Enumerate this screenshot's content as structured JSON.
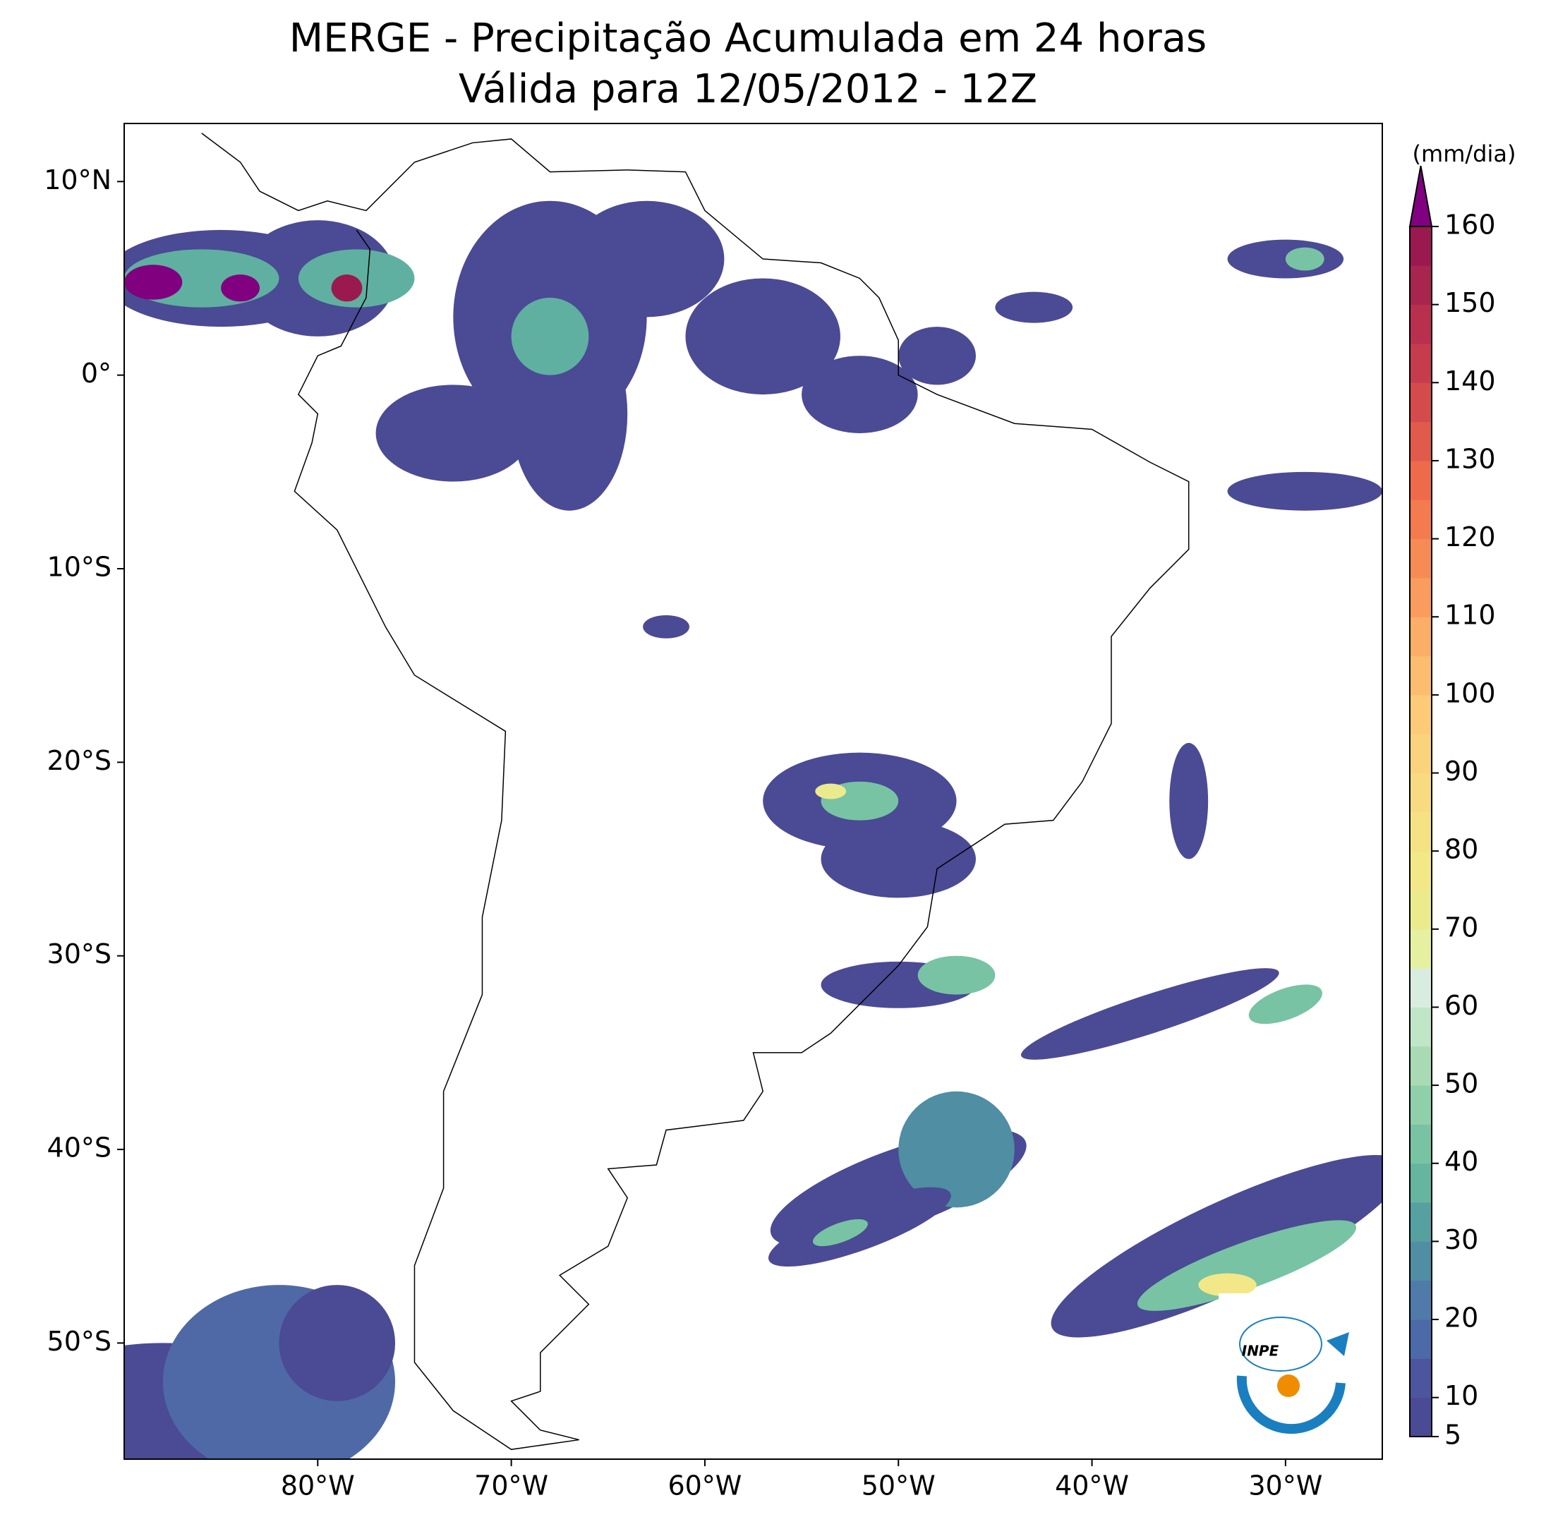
{
  "title": [
    "MERGE - Precipitação Acumulada em 24 horas",
    "Válida para 12/05/2012 - 12Z"
  ],
  "map": {
    "type": "map",
    "xlim": [
      -90,
      -25
    ],
    "ylim": [
      -56,
      13
    ],
    "xticks": [
      {
        "value": -80,
        "label": "80°W"
      },
      {
        "value": -70,
        "label": "70°W"
      },
      {
        "value": -60,
        "label": "60°W"
      },
      {
        "value": -50,
        "label": "50°W"
      },
      {
        "value": -40,
        "label": "40°W"
      },
      {
        "value": -30,
        "label": "30°W"
      }
    ],
    "yticks": [
      {
        "value": 10,
        "label": "10°N"
      },
      {
        "value": 0,
        "label": "0°"
      },
      {
        "value": -10,
        "label": "10°S"
      },
      {
        "value": -20,
        "label": "20°S"
      },
      {
        "value": -30,
        "label": "30°S"
      },
      {
        "value": -40,
        "label": "40°S"
      },
      {
        "value": -50,
        "label": "50°S"
      }
    ]
  },
  "colorbar": {
    "label": "(mm/dia)",
    "lim": [
      5,
      160
    ],
    "ticks": [
      5,
      10,
      20,
      30,
      40,
      50,
      60,
      70,
      80,
      90,
      100,
      110,
      120,
      130,
      140,
      150,
      160
    ],
    "colors": [
      "#4a4a95",
      "#4b569e",
      "#4c69a8",
      "#4f7aa9",
      "#4f8ea3",
      "#57a0a0",
      "#65b59f",
      "#78c3a3",
      "#8fd0aa",
      "#a8dbb4",
      "#c1e5c7",
      "#d8ede0",
      "#e5f0a0",
      "#ebeb8e",
      "#f2e888",
      "#f5e284",
      "#f8da80",
      "#fbd37d",
      "#fdca78",
      "#fcbd70",
      "#fbae67",
      "#f99c5d",
      "#f78b55",
      "#f47a4f",
      "#ee6a4b",
      "#e25a4b",
      "#d54b4c",
      "#c63c4d",
      "#b9304f",
      "#a82550",
      "#9a1a50"
    ],
    "extend_color": "#800080"
  },
  "logo": "INPE"
}
